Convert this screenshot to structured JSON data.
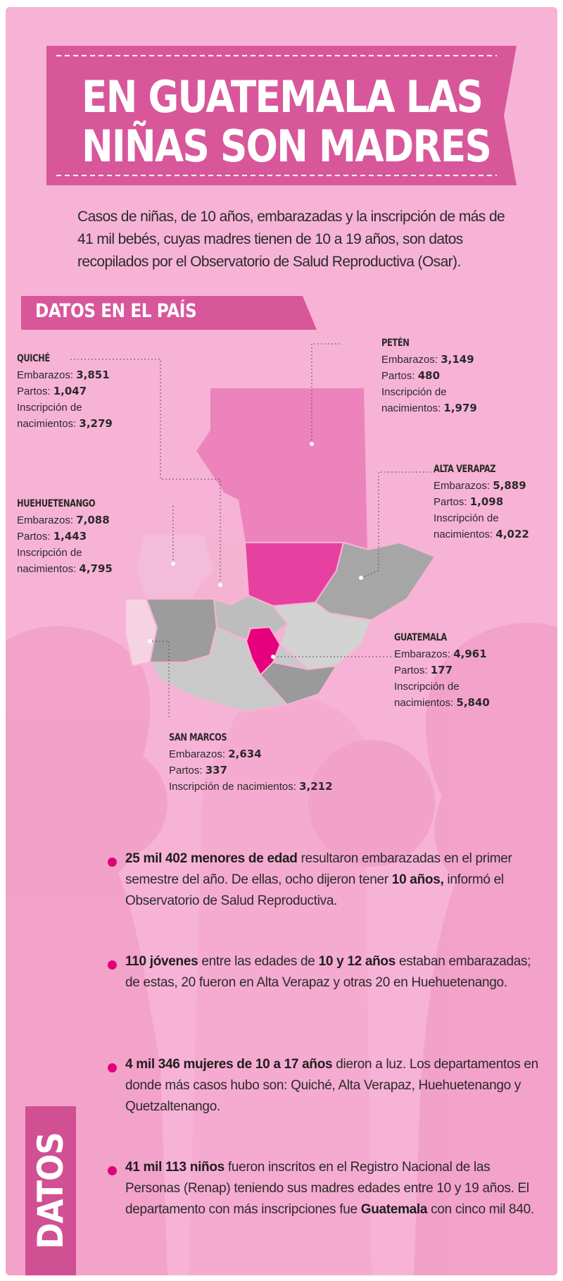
{
  "title": {
    "line1": "EN GUATEMALA LAS",
    "line2": "NIÑAS SON MADRES"
  },
  "intro": "Casos de niñas, de 10 años, embarazadas y la inscripción de más de 41 mil bebés, cuyas madres tienen de 10 a 19 años, son datos recopilados por el Observatorio de Salud Reproductiva (Osar).",
  "section_title": "DATOS EN EL PAÍS",
  "labels": {
    "embarazos": "Embarazos:",
    "partos": "Partos:",
    "inscripcion": "Inscripción de",
    "nacimientos": "nacimientos:",
    "inscripcion_full": "Inscripción de nacimientos:"
  },
  "regions": {
    "quiche": {
      "name": "QUICHÉ",
      "embarazos": "3,851",
      "partos": "1,047",
      "inscripcion": "3,279"
    },
    "peten": {
      "name": "PETÉN",
      "embarazos": "3,149",
      "partos": "480",
      "inscripcion": "1,979"
    },
    "alta_verapaz": {
      "name": "ALTA VERAPAZ",
      "embarazos": "5,889",
      "partos": "1,098",
      "inscripcion": "4,022"
    },
    "huehuetenango": {
      "name": "HUEHUETENANGO",
      "embarazos": "7,088",
      "partos": "1,443",
      "inscripcion": "4,795"
    },
    "guatemala": {
      "name": "GUATEMALA",
      "embarazos": "4,961",
      "partos": "177",
      "inscripcion": "5,840"
    },
    "san_marcos": {
      "name": "SAN MARCOS",
      "embarazos": "2,634",
      "partos": "337",
      "inscripcion": "3,212"
    }
  },
  "facts": [
    {
      "bold": "25 mil 402 menores de edad",
      "t1": " resultaron embarazadas en el primer semestre del año. De ellas, ocho dijeron tener ",
      "bold2": "10 años,",
      "t2": " informó el Observatorio de Salud Reproductiva."
    },
    {
      "bold": "110 jóvenes",
      "t1": " entre las edades de ",
      "bold2": "10 y 12 años",
      "t2": " estaban embarazadas; de estas, 20 fueron en Alta Verapaz y otras 20 en Huehuetenango."
    },
    {
      "bold": "4 mil 346 mujeres de 10 a 17 años",
      "t1": " dieron a luz. Los departamentos en donde más casos hubo son: Quiché, Alta Verapaz, Huehuetenango y Quetzaltenango.",
      "bold2": "",
      "t2": ""
    },
    {
      "bold": "41 mil 113 niños",
      "t1": " fueron inscritos en el Registro Nacional de las Personas (Renap) teniendo sus madres edades entre 10 y 19 años. El departamento con más inscripciones fue ",
      "bold2": "Guatemala",
      "t2": " con cinco mil 840."
    }
  ],
  "side_tab": "DATOS",
  "colors": {
    "background": "#f7b3d5",
    "banner": "#d8579a",
    "accent_magenta": "#e0007a",
    "highlight_region": "#f06bb3",
    "map_gray": "#a9a9a9"
  }
}
